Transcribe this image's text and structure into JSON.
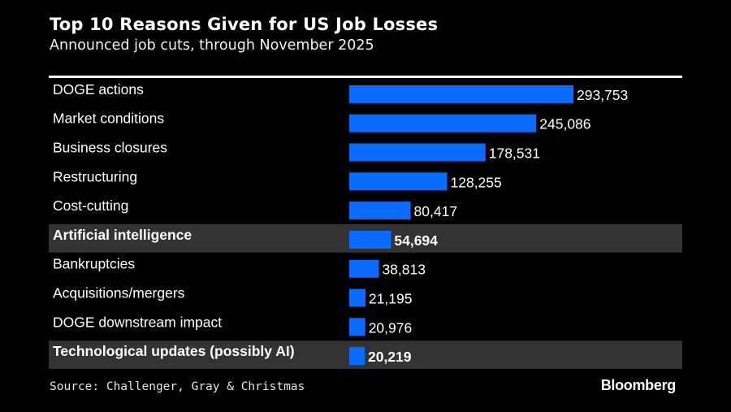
{
  "header": {
    "title": "Top 10 Reasons Given for US Job Losses",
    "subtitle": "Announced job cuts, through November 2025"
  },
  "footer": {
    "source": "Source: Challenger, Gray & Christmas",
    "brand": "Bloomberg"
  },
  "colors": {
    "background": "#000000",
    "bar": "#0a6cff",
    "highlight_band": "#333333",
    "text": "#ffffff"
  },
  "chart_data": {
    "type": "bar",
    "orientation": "horizontal",
    "title": "Top 10 Reasons Given for US Job Losses",
    "subtitle": "Announced job cuts, through November 2025",
    "xlabel": "",
    "ylabel": "",
    "grid": false,
    "legend": "none",
    "categories": [
      "DOGE actions",
      "Market conditions",
      "Business closures",
      "Restructuring",
      "Cost-cutting",
      "Artificial intelligence",
      "Bankruptcies",
      "Acquisitions/mergers",
      "DOGE downstream impact",
      "Technological updates (possibly AI)"
    ],
    "values": [
      293753,
      245086,
      178531,
      128255,
      80417,
      54694,
      38813,
      21195,
      20976,
      20219
    ],
    "value_labels": [
      "293,753",
      "245,086",
      "178,531",
      "128,255",
      "80,417",
      "54,694",
      "38,813",
      "21,195",
      "20,976",
      "20,219"
    ],
    "highlighted": [
      false,
      false,
      false,
      false,
      false,
      true,
      false,
      false,
      false,
      true
    ],
    "xlim": [
      0,
      293753
    ],
    "source": "Source: Challenger, Gray & Christmas"
  }
}
